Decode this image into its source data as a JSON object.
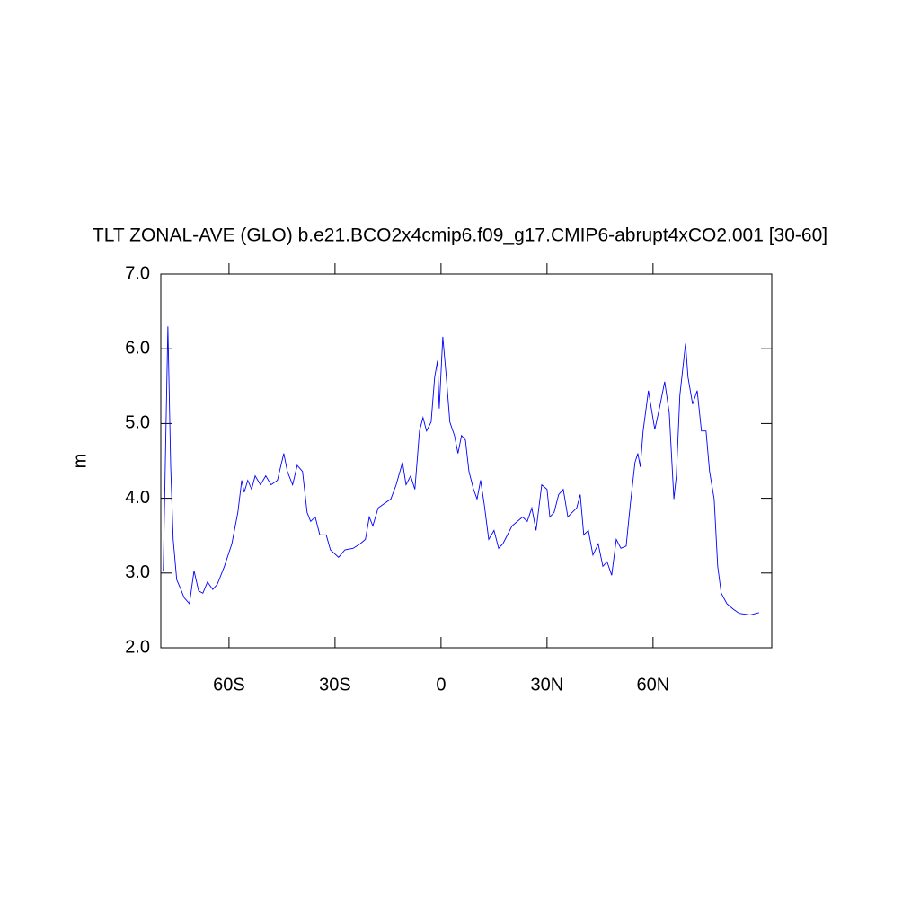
{
  "chart_data": {
    "type": "line",
    "title": "TLT ZONAL-AVE (GLO) b.e21.BCO2x4cmip6.f09_g17.CMIP6-abrupt4xCO2.001 [30-60]",
    "y_label": "m",
    "x": [
      -78.6,
      -77.3,
      -76.5,
      -75.8,
      -74.8,
      -73.7,
      -72.7,
      -71.2,
      -69.9,
      -68.6,
      -67.4,
      -66.1,
      -64.6,
      -63.3,
      -61.3,
      -59.2,
      -57.5,
      -56.4,
      -55.7,
      -54.7,
      -53.6,
      -52.6,
      -51.1,
      -49.6,
      -48.1,
      -46.3,
      -44.5,
      -43.5,
      -42.0,
      -40.7,
      -39.2,
      -37.9,
      -36.9,
      -35.6,
      -34.3,
      -32.5,
      -31.3,
      -29.0,
      -27.2,
      -24.9,
      -22.9,
      -21.4,
      -20.3,
      -19.3,
      -17.8,
      -16.0,
      -14.2,
      -12.7,
      -10.9,
      -9.9,
      -8.6,
      -7.4,
      -6.1,
      -5.1,
      -4.1,
      -2.8,
      -1.8,
      -1.0,
      -0.5,
      0.5,
      1.5,
      2.5,
      3.8,
      4.8,
      5.8,
      6.9,
      7.9,
      9.2,
      10.2,
      11.2,
      12.2,
      13.5,
      15.0,
      16.3,
      17.5,
      18.8,
      20.1,
      21.6,
      23.1,
      24.4,
      25.7,
      26.9,
      28.5,
      30.0,
      30.8,
      32.0,
      33.3,
      34.6,
      35.9,
      37.1,
      38.4,
      39.4,
      40.4,
      41.7,
      43.0,
      44.5,
      45.8,
      47.0,
      48.3,
      49.6,
      50.9,
      52.4,
      53.6,
      54.9,
      55.7,
      56.4,
      57.2,
      58.7,
      60.5,
      61.8,
      63.3,
      64.6,
      65.9,
      66.6,
      67.6,
      69.2,
      69.9,
      71.2,
      72.5,
      73.7,
      75.0,
      76.0,
      77.3,
      78.3,
      79.3,
      80.9,
      82.6,
      84.4,
      87.5,
      90.0
    ],
    "series": [
      {
        "color": "#0000ff",
        "values": [
          3.02,
          6.3,
          4.42,
          3.45,
          2.91,
          2.79,
          2.67,
          2.59,
          3.03,
          2.76,
          2.73,
          2.88,
          2.78,
          2.85,
          3.09,
          3.39,
          3.81,
          4.24,
          4.08,
          4.24,
          4.12,
          4.3,
          4.18,
          4.3,
          4.18,
          4.24,
          4.6,
          4.36,
          4.18,
          4.44,
          4.36,
          3.81,
          3.69,
          3.75,
          3.51,
          3.51,
          3.31,
          3.21,
          3.31,
          3.33,
          3.39,
          3.45,
          3.75,
          3.63,
          3.87,
          3.93,
          3.99,
          4.18,
          4.48,
          4.18,
          4.3,
          4.12,
          4.9,
          5.08,
          4.9,
          5.02,
          5.62,
          5.84,
          5.2,
          6.16,
          5.62,
          5.02,
          4.84,
          4.6,
          4.84,
          4.78,
          4.36,
          4.12,
          3.99,
          4.24,
          3.93,
          3.45,
          3.57,
          3.33,
          3.39,
          3.51,
          3.63,
          3.69,
          3.75,
          3.69,
          3.87,
          3.57,
          4.18,
          4.12,
          3.75,
          3.81,
          4.05,
          4.12,
          3.75,
          3.81,
          3.87,
          4.05,
          3.51,
          3.57,
          3.24,
          3.39,
          3.09,
          3.15,
          2.97,
          3.45,
          3.33,
          3.36,
          3.93,
          4.48,
          4.6,
          4.42,
          4.9,
          5.44,
          4.92,
          5.2,
          5.56,
          5.14,
          3.99,
          4.3,
          5.38,
          6.07,
          5.62,
          5.26,
          5.44,
          4.9,
          4.9,
          4.36,
          3.99,
          3.09,
          2.73,
          2.59,
          2.52,
          2.46,
          2.44,
          2.47
        ]
      }
    ],
    "xlim": [
      -79.3,
      93.6
    ],
    "xticks": [
      {
        "value": -60,
        "label": "60S"
      },
      {
        "value": -30,
        "label": "30S"
      },
      0,
      {
        "value": 30,
        "label": "30N"
      },
      {
        "value": 60,
        "label": "60N"
      }
    ],
    "ylim": [
      2,
      7
    ],
    "yticks": [
      {
        "value": 2,
        "label": "2.0"
      },
      {
        "value": 3,
        "label": "3.0"
      },
      {
        "value": 4,
        "label": "4.0"
      },
      {
        "value": 5,
        "label": "5.0"
      },
      {
        "value": 6,
        "label": "6.0"
      },
      {
        "value": 7,
        "label": "7.0"
      }
    ]
  }
}
